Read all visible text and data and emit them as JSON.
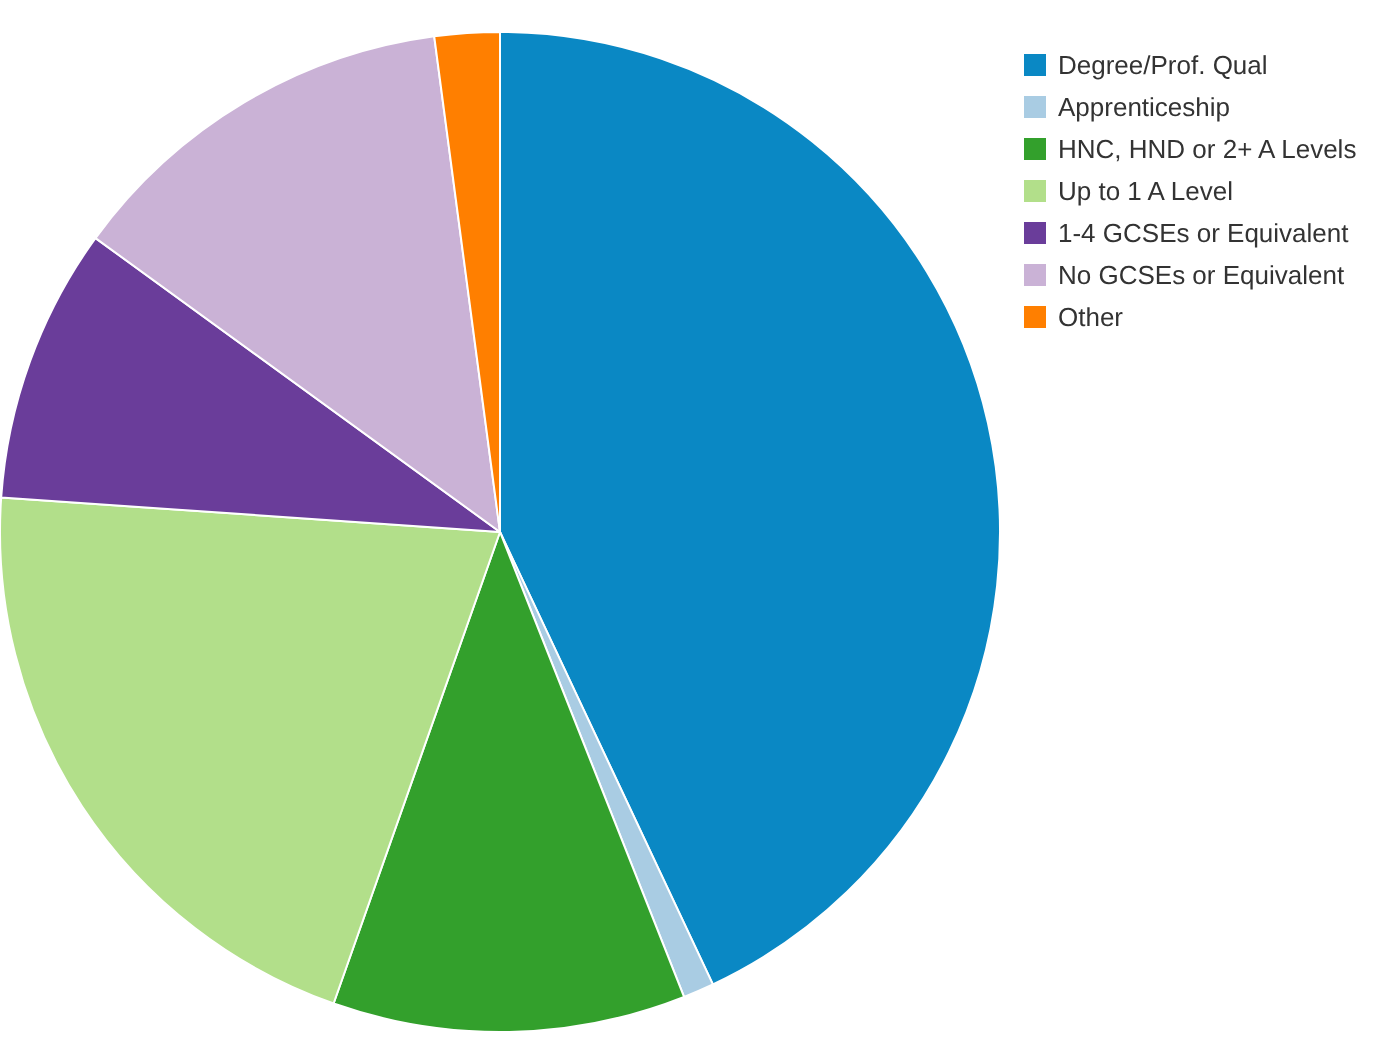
{
  "chart_data": {
    "type": "pie",
    "categories": [
      "Degree/Prof. Qual",
      "Apprenticeship",
      "HNC, HND or 2+ A Levels",
      "Up to 1 A Level",
      "1-4 GCSEs or Equivalent",
      "No GCSEs or Equivalent",
      "Other"
    ],
    "values": [
      43,
      1,
      11.4,
      20.7,
      8.9,
      12.9,
      2.1
    ],
    "colors": [
      "#0a88c4",
      "#a9cce3",
      "#33a02c",
      "#b2df8a",
      "#6a3d9a",
      "#cab2d6",
      "#ff7f00"
    ],
    "legend": "top right"
  }
}
